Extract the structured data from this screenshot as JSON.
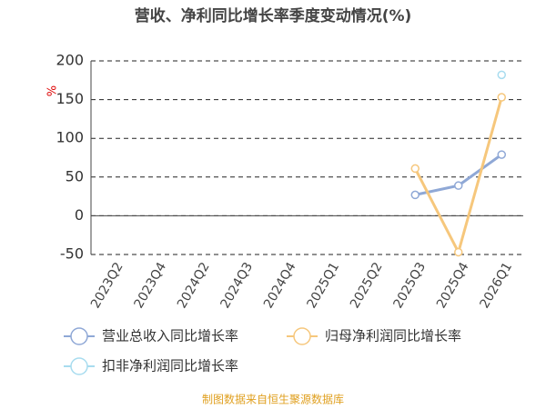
{
  "chart_data": {
    "type": "line",
    "title": "营收、净利同比增长率季度变动情况(%)",
    "y_label": "%",
    "categories": [
      "2023Q2",
      "2023Q4",
      "2024Q2",
      "2024Q3",
      "2024Q4",
      "2025Q1",
      "2025Q2",
      "2025Q3",
      "2025Q4",
      "2026Q1"
    ],
    "series": [
      {
        "name": "营业总收入同比增长率",
        "color": "#8fa8d6",
        "values": [
          null,
          null,
          null,
          null,
          null,
          null,
          null,
          27,
          39,
          79
        ]
      },
      {
        "name": "归母净利润同比增长率",
        "color": "#f6c77c",
        "values": [
          null,
          null,
          null,
          null,
          null,
          null,
          null,
          61,
          -47,
          153
        ]
      },
      {
        "name": "扣非净利润同比增长率",
        "color": "#a8dcef",
        "values": [
          null,
          null,
          null,
          null,
          null,
          null,
          null,
          null,
          null,
          182
        ]
      }
    ],
    "ylim": [
      -50,
      200
    ],
    "yticks": [
      -50,
      0,
      50,
      100,
      150,
      200
    ],
    "grid": true,
    "footer": "制图数据来自恒生聚源数据库"
  }
}
